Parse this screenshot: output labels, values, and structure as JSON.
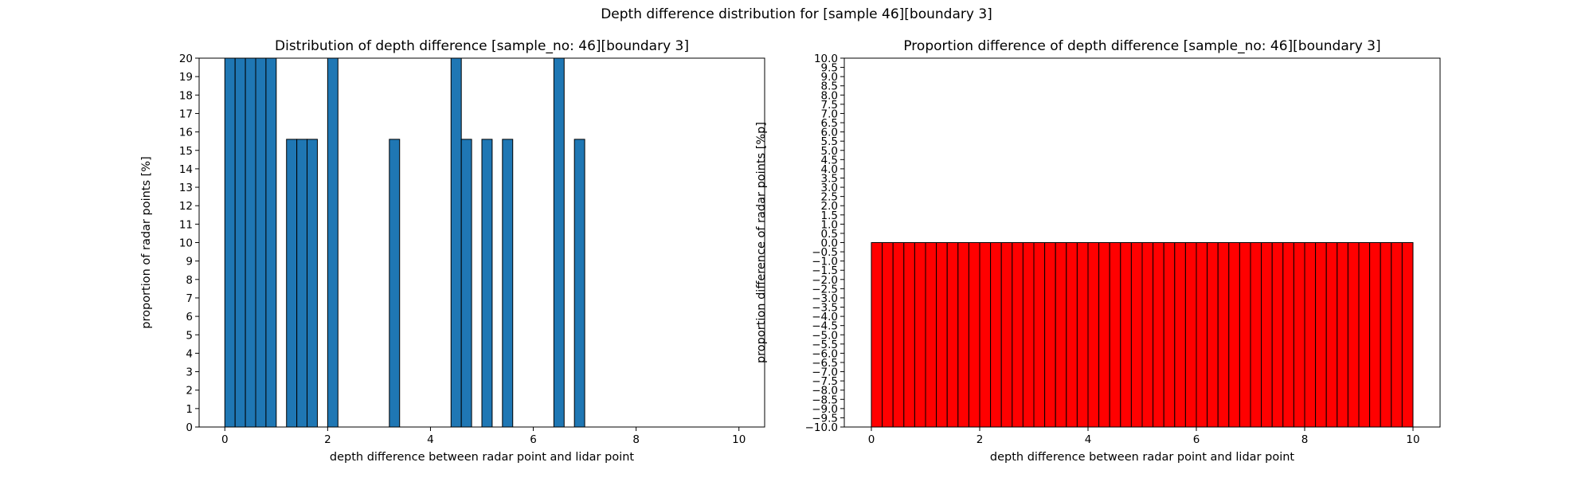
{
  "figure": {
    "suptitle": "Depth difference distribution for [sample 46][boundary 3]"
  },
  "chart_data": [
    {
      "type": "bar",
      "title": "Distribution of depth difference [sample_no: 46][boundary 3]",
      "xlabel": "depth difference between radar point and lidar point",
      "ylabel": "proportion of radar points [%]",
      "xlim": [
        -0.5,
        10.5
      ],
      "ylim": [
        0,
        20
      ],
      "xticks": [
        0,
        2,
        4,
        6,
        8,
        10
      ],
      "yticks": [
        0,
        1,
        2,
        3,
        4,
        5,
        6,
        7,
        8,
        9,
        10,
        11,
        12,
        13,
        14,
        15,
        16,
        17,
        18,
        19,
        20
      ],
      "bar_width": 0.2,
      "bar_color": "#1f77b4",
      "edge_color": "#000000",
      "x": [
        0.1,
        0.3,
        0.5,
        0.7,
        0.9,
        1.3,
        1.5,
        1.7,
        2.1,
        3.3,
        4.5,
        4.7,
        5.1,
        5.5,
        6.5,
        6.9
      ],
      "values": [
        20,
        20,
        20,
        20,
        20,
        15.6,
        15.6,
        15.6,
        20,
        15.6,
        20,
        15.6,
        15.6,
        15.6,
        20,
        15.6
      ],
      "grid": false
    },
    {
      "type": "bar",
      "title": "Proportion difference of depth difference [sample_no: 46][boundary 3]",
      "xlabel": "depth difference between radar point and lidar point",
      "ylabel": "proportion difference of radar points [%p]",
      "xlim": [
        -0.5,
        10.5
      ],
      "ylim": [
        -10,
        10
      ],
      "xticks": [
        0,
        2,
        4,
        6,
        8,
        10
      ],
      "ytick_step": 0.5,
      "bar_width": 0.2,
      "bar_color": "#ff0000",
      "edge_color": "#000000",
      "bar_count": 50,
      "bar_start": 0,
      "values_all": 0,
      "grid": false
    }
  ]
}
